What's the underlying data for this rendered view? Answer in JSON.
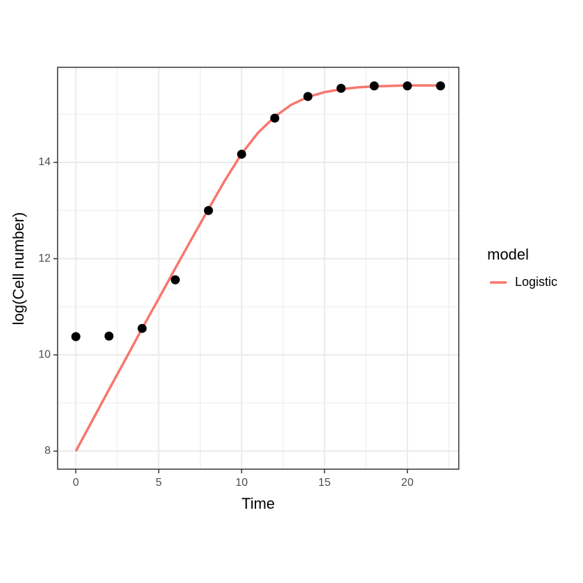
{
  "chart_data": {
    "type": "line",
    "x_label": "Time",
    "y_label": "log(Cell number)",
    "xlim": [
      -1.1,
      23.1
    ],
    "ylim": [
      7.625,
      15.976
    ],
    "xticks": [
      0,
      5,
      10,
      15,
      20
    ],
    "yticks": [
      8,
      10,
      12,
      14
    ],
    "x_minor_grid": [
      2.5,
      7.5,
      12.5,
      17.5,
      22.5
    ],
    "y_minor_grid": [
      9,
      11,
      13,
      15
    ],
    "grid": true,
    "points": {
      "color": "#000000",
      "x": [
        0,
        2,
        4,
        6,
        8,
        10,
        12,
        14,
        16,
        18,
        20,
        22
      ],
      "values": [
        10.38,
        10.39,
        10.55,
        11.56,
        13.0,
        14.17,
        14.92,
        15.37,
        15.54,
        15.59,
        15.59,
        15.59
      ]
    },
    "legend_title": "model",
    "legend_position": "right",
    "series": [
      {
        "name": "Logistic",
        "color": "#F8766D",
        "x": [
          0,
          1,
          2,
          3,
          4,
          5,
          6,
          7,
          8,
          9,
          10,
          11,
          12,
          13,
          14,
          15,
          16,
          17,
          18,
          19,
          20,
          21,
          22
        ],
        "values": [
          8.0,
          8.64,
          9.28,
          9.91,
          10.55,
          11.17,
          11.8,
          12.42,
          13.03,
          13.63,
          14.18,
          14.62,
          14.95,
          15.2,
          15.36,
          15.46,
          15.52,
          15.56,
          15.58,
          15.59,
          15.6,
          15.6,
          15.6
        ]
      }
    ]
  }
}
